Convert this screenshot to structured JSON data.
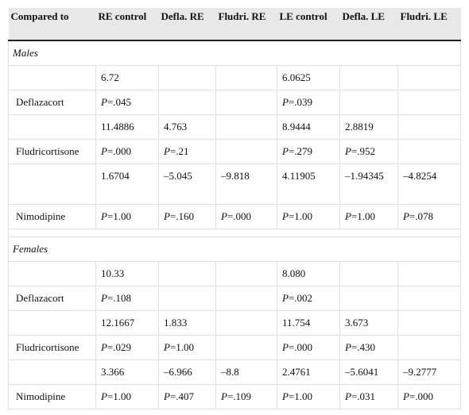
{
  "table": {
    "header": [
      "Compared to",
      "RE control",
      "Defla. RE",
      "Fludri. RE",
      "LE control",
      "Defla. LE",
      "Fludri. LE"
    ],
    "sections": [
      {
        "label": "Males",
        "rows": [
          [
            null,
            "6.72",
            null,
            null,
            "6.0625",
            null,
            null
          ],
          [
            "Deflazacort",
            {
              "italic": "P",
              "text": "=.045"
            },
            null,
            null,
            {
              "italic": "P",
              "text": "=.039"
            },
            null,
            null
          ],
          [
            null,
            "11.4886",
            "4.763",
            null,
            "8.9444",
            "2.8819",
            null
          ],
          [
            "Fludricortisone",
            {
              "italic": "P",
              "text": "=.000"
            },
            {
              "italic": "P",
              "text": "=.21"
            },
            null,
            {
              "italic": "P",
              "text": "=.279"
            },
            {
              "italic": "P",
              "text": "=.952"
            },
            null
          ],
          [
            null,
            "1.6704",
            "–5.045",
            "–9.818",
            "4.11905",
            "–1.94345",
            "–4.8254"
          ],
          [
            "Nimodipine",
            {
              "italic": "P",
              "text": "=1.00"
            },
            {
              "italic": "P",
              "text": "=.160"
            },
            {
              "italic": "P",
              "text": "=.000"
            },
            {
              "italic": "P",
              "text": "=1.00"
            },
            {
              "italic": "P",
              "text": "=1.00"
            },
            {
              "italic": "P",
              "text": "=.078"
            }
          ]
        ]
      },
      {
        "label": "Females",
        "rows": [
          [
            null,
            "10.33",
            null,
            null,
            "8.080",
            null,
            null
          ],
          [
            "Deflazacort",
            {
              "italic": "P",
              "text": "=.108"
            },
            null,
            null,
            {
              "italic": "P",
              "text": "=.002"
            },
            null,
            null
          ],
          [
            null,
            "12.1667",
            "1.833",
            null,
            "11.754",
            "3.673",
            null
          ],
          [
            "Fludricortisone",
            {
              "italic": "P",
              "text": "=.029"
            },
            {
              "italic": "P",
              "text": "=1.00"
            },
            null,
            {
              "italic": "P",
              "text": "=.000"
            },
            {
              "italic": "P",
              "text": "=.430"
            },
            null
          ],
          [
            null,
            "3.366",
            "–6.966",
            "–8.8",
            "2.4761",
            "–5.6041",
            "–9.2777"
          ],
          [
            "Nimodipine",
            {
              "italic": "P",
              "text": "=1.00"
            },
            {
              "italic": "P",
              "text": "=.407"
            },
            {
              "italic": "P",
              "text": "=.109"
            },
            {
              "italic": "P",
              "text": "=1.00"
            },
            {
              "italic": "P",
              "text": "=.031"
            },
            {
              "italic": "P",
              "text": "=.000"
            }
          ]
        ]
      }
    ]
  }
}
